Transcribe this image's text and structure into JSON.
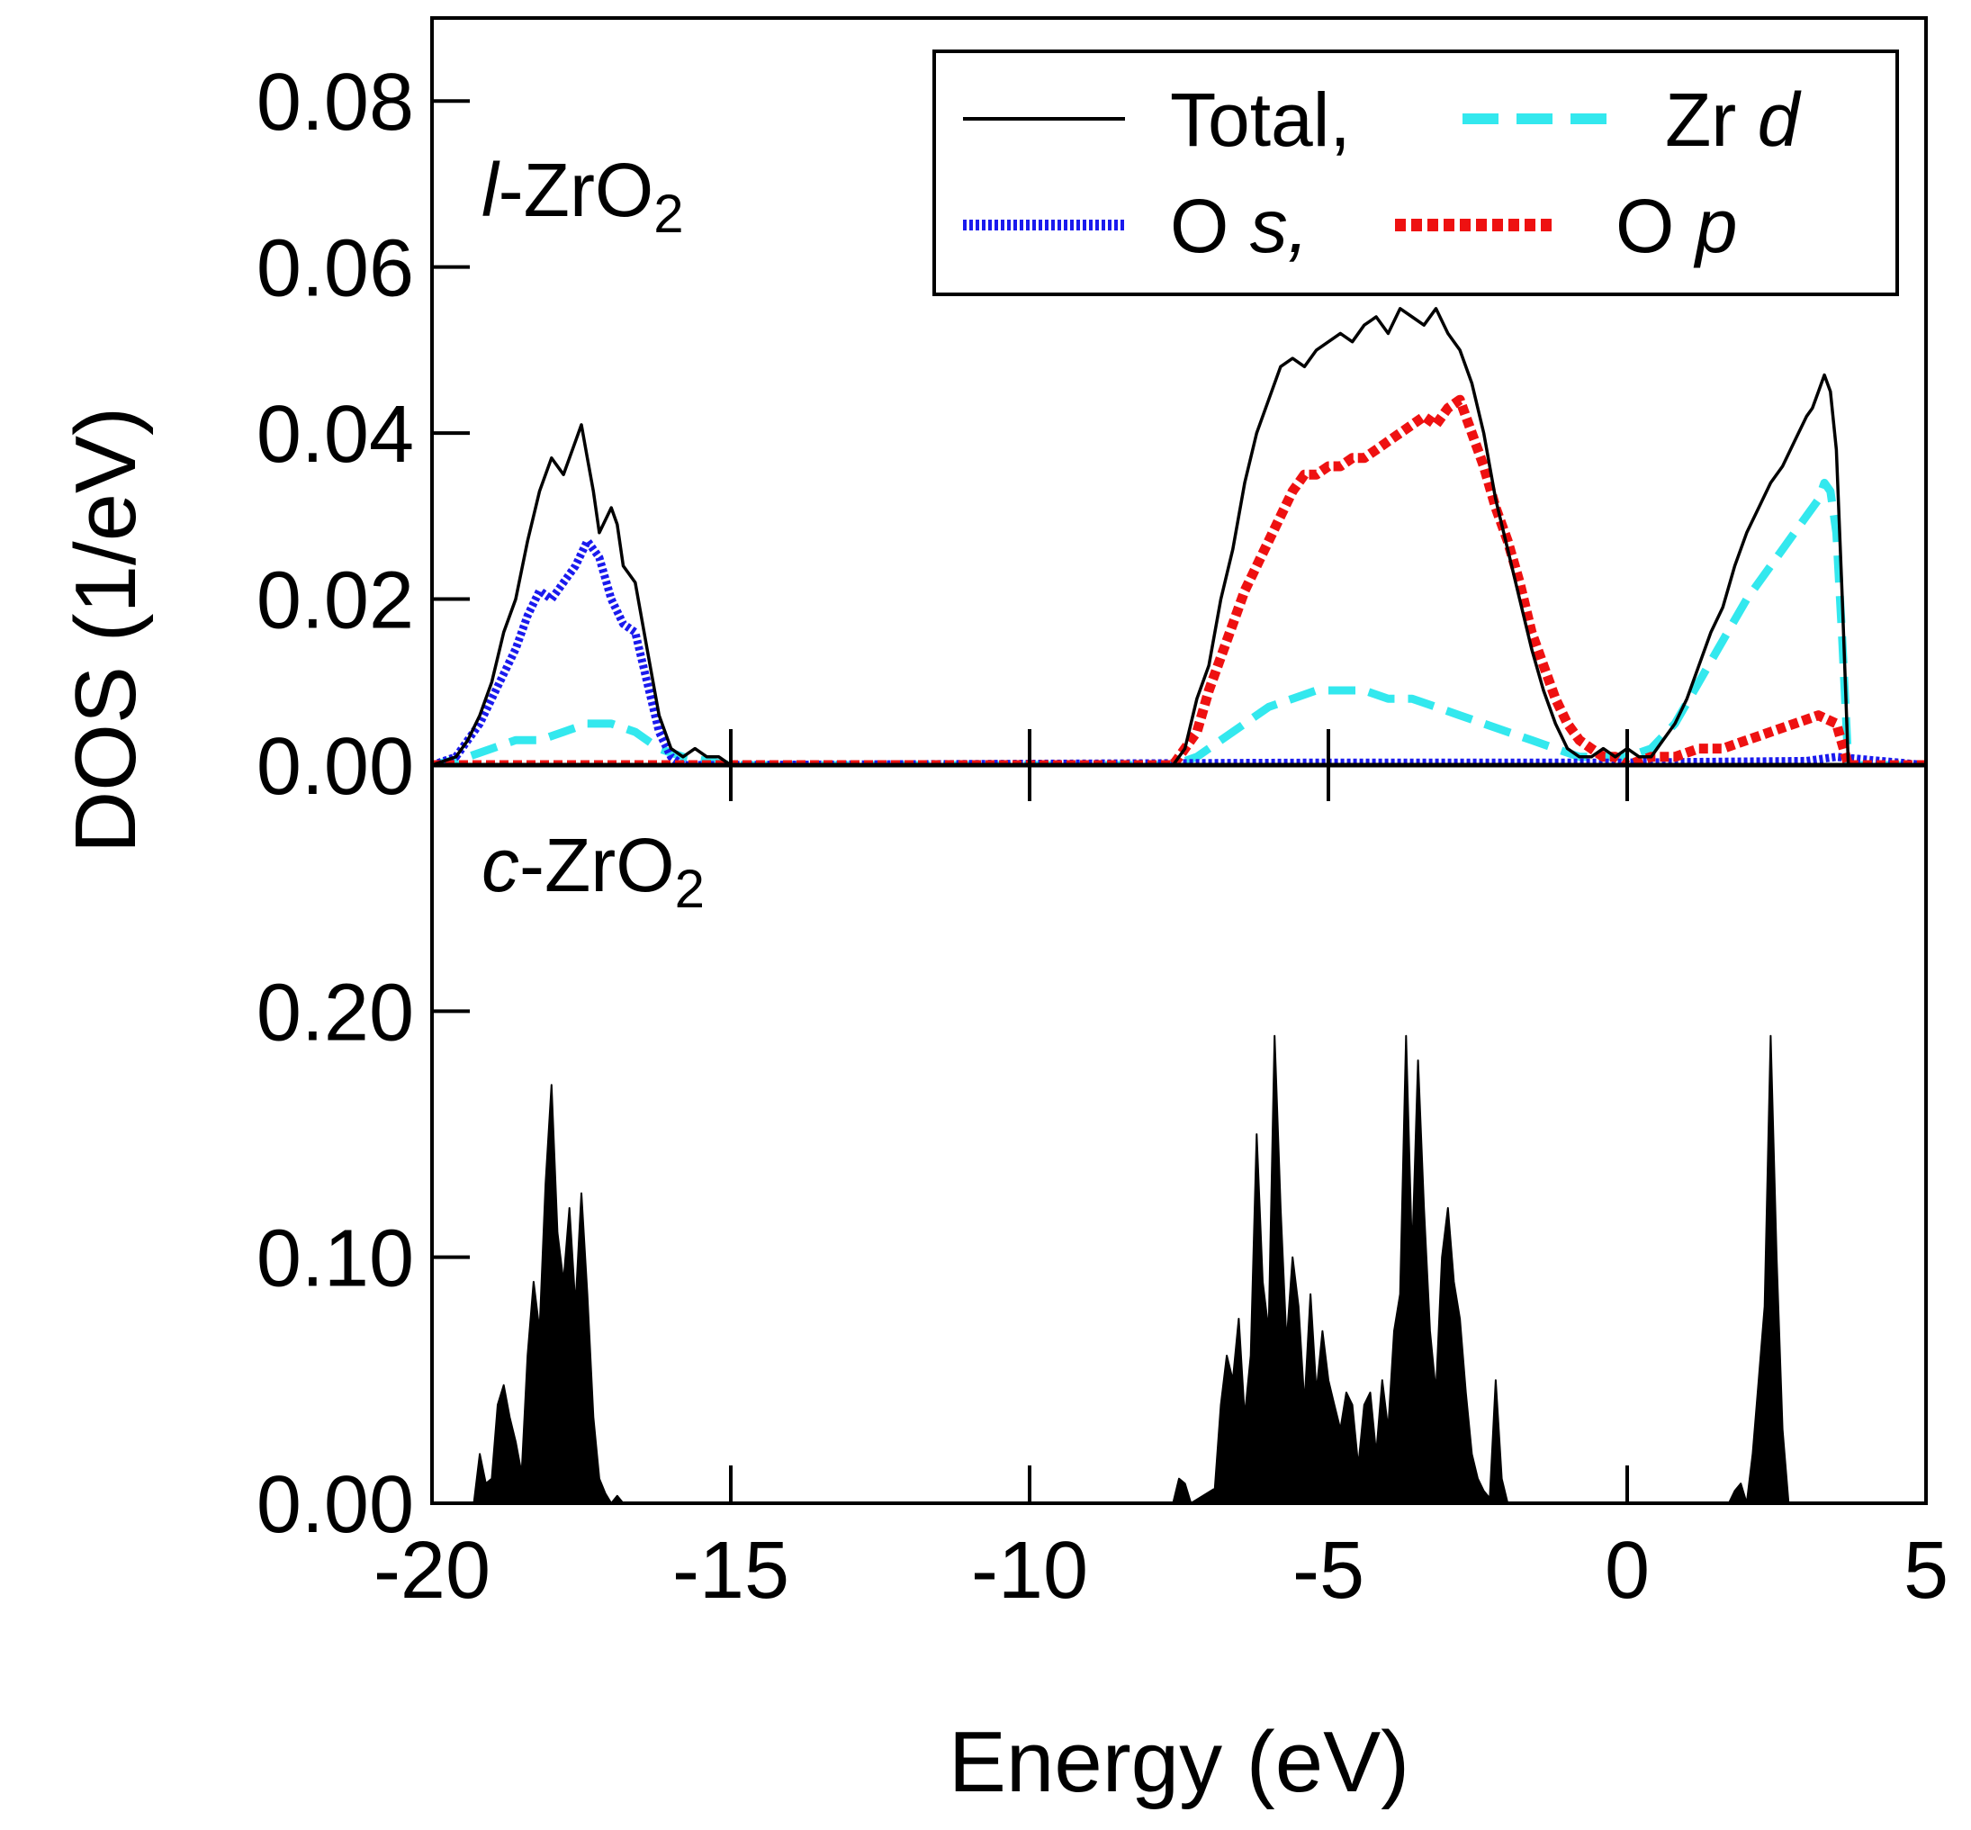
{
  "chart_data": [
    {
      "type": "line",
      "panel_label": {
        "prefix": "l",
        "formula": "-ZrO",
        "subscript": "2"
      },
      "xlim": [
        -20,
        5
      ],
      "ylim": [
        0,
        0.09
      ],
      "xticks": [
        -20,
        -15,
        -10,
        -5,
        0,
        5
      ],
      "yticks": [
        "0.00",
        "0.02",
        "0.04",
        "0.06",
        "0.08"
      ],
      "ytick_values": [
        0,
        0.02,
        0.04,
        0.06,
        0.08
      ],
      "legend": {
        "placement": "top-right",
        "entries": [
          {
            "label": "Total,",
            "suffix": ""
          },
          {
            "label": "Zr ",
            "suffix": "d"
          },
          {
            "label": "O ",
            "suffix": "s,"
          },
          {
            "label": "O ",
            "suffix": "p"
          }
        ]
      },
      "series": [
        {
          "name": "Total",
          "color": "#000000",
          "style": "solid",
          "x": [
            -20,
            -19.6,
            -19.4,
            -19.2,
            -19.0,
            -18.8,
            -18.6,
            -18.4,
            -18.2,
            -18.0,
            -17.8,
            -17.6,
            -17.5,
            -17.4,
            -17.3,
            -17.2,
            -17.0,
            -16.9,
            -16.8,
            -16.6,
            -16.4,
            -16.2,
            -16.0,
            -15.8,
            -15.6,
            -15.4,
            -15.2,
            -15.0,
            -7.6,
            -7.4,
            -7.2,
            -7.0,
            -6.8,
            -6.6,
            -6.4,
            -6.2,
            -6.0,
            -5.8,
            -5.6,
            -5.4,
            -5.2,
            -5.0,
            -4.8,
            -4.6,
            -4.4,
            -4.2,
            -4.0,
            -3.8,
            -3.6,
            -3.4,
            -3.2,
            -3.0,
            -2.8,
            -2.6,
            -2.4,
            -2.2,
            -2.0,
            -1.8,
            -1.6,
            -1.4,
            -1.2,
            -1.0,
            -0.8,
            -0.6,
            -0.4,
            -0.2,
            0.0,
            0.2,
            0.4,
            0.6,
            0.8,
            1.0,
            1.2,
            1.4,
            1.6,
            1.8,
            2.0,
            2.2,
            2.4,
            2.6,
            2.8,
            3.0,
            3.1,
            3.2,
            3.3,
            3.4,
            3.5,
            3.6,
            3.7,
            5.0
          ],
          "y": [
            0,
            0.001,
            0.003,
            0.006,
            0.01,
            0.016,
            0.02,
            0.027,
            0.033,
            0.037,
            0.035,
            0.039,
            0.041,
            0.037,
            0.033,
            0.028,
            0.031,
            0.029,
            0.024,
            0.022,
            0.014,
            0.006,
            0.002,
            0.001,
            0.002,
            0.001,
            0.001,
            0,
            0,
            0.002,
            0.008,
            0.012,
            0.02,
            0.026,
            0.034,
            0.04,
            0.044,
            0.048,
            0.049,
            0.048,
            0.05,
            0.051,
            0.052,
            0.051,
            0.053,
            0.054,
            0.052,
            0.055,
            0.054,
            0.053,
            0.055,
            0.052,
            0.05,
            0.046,
            0.04,
            0.032,
            0.026,
            0.02,
            0.014,
            0.009,
            0.005,
            0.002,
            0.001,
            0.001,
            0.002,
            0.001,
            0.002,
            0.001,
            0.001,
            0.003,
            0.005,
            0.008,
            0.012,
            0.016,
            0.019,
            0.024,
            0.028,
            0.031,
            0.034,
            0.036,
            0.039,
            0.042,
            0.043,
            0.045,
            0.047,
            0.045,
            0.038,
            0.02,
            0,
            0
          ]
        },
        {
          "name": "Zr d",
          "color": "#33e8ee",
          "style": "dashed",
          "x": [
            -20,
            -19.4,
            -19.0,
            -18.6,
            -18.2,
            -17.8,
            -17.4,
            -17.0,
            -16.6,
            -16.2,
            -15.8,
            -15.0,
            -7.6,
            -7.2,
            -6.8,
            -6.4,
            -6.0,
            -5.6,
            -5.2,
            -4.8,
            -4.4,
            -4.0,
            -3.6,
            -3.2,
            -2.8,
            -2.4,
            -2.0,
            -1.6,
            -1.2,
            -0.8,
            -0.4,
            0.0,
            0.4,
            0.8,
            1.2,
            1.6,
            2.0,
            2.4,
            2.8,
            3.0,
            3.2,
            3.3,
            3.4,
            3.5,
            3.6,
            3.7,
            5.0
          ],
          "y": [
            0,
            0.001,
            0.002,
            0.003,
            0.003,
            0.004,
            0.005,
            0.005,
            0.004,
            0.002,
            0.001,
            0,
            0,
            0.001,
            0.003,
            0.005,
            0.007,
            0.008,
            0.009,
            0.009,
            0.009,
            0.008,
            0.008,
            0.007,
            0.006,
            0.005,
            0.004,
            0.003,
            0.002,
            0.001,
            0.001,
            0.001,
            0.002,
            0.005,
            0.01,
            0.015,
            0.02,
            0.024,
            0.028,
            0.03,
            0.032,
            0.034,
            0.033,
            0.028,
            0.015,
            0,
            0
          ]
        },
        {
          "name": "O s",
          "color": "#1a1aee",
          "style": "dotted",
          "x": [
            -20,
            -19.6,
            -19.4,
            -19.2,
            -19.0,
            -18.8,
            -18.6,
            -18.4,
            -18.2,
            -18.0,
            -17.8,
            -17.6,
            -17.4,
            -17.2,
            -17.0,
            -16.8,
            -16.6,
            -16.4,
            -16.2,
            -16.0,
            -15.8,
            -5.0,
            0.0,
            3.0,
            3.5,
            5.0
          ],
          "y": [
            0,
            0.001,
            0.003,
            0.005,
            0.008,
            0.011,
            0.014,
            0.018,
            0.021,
            0.02,
            0.022,
            0.024,
            0.027,
            0.025,
            0.02,
            0.017,
            0.016,
            0.01,
            0.004,
            0.001,
            0,
            0.0003,
            0.0003,
            0.0005,
            0.001,
            0
          ]
        },
        {
          "name": "O p",
          "color": "#ee1111",
          "style": "dotted-heavy",
          "x": [
            -20,
            -15.0,
            -7.6,
            -7.2,
            -7.0,
            -6.8,
            -6.6,
            -6.4,
            -6.2,
            -6.0,
            -5.8,
            -5.6,
            -5.4,
            -5.2,
            -5.0,
            -4.8,
            -4.6,
            -4.4,
            -4.2,
            -4.0,
            -3.8,
            -3.6,
            -3.4,
            -3.2,
            -3.0,
            -2.8,
            -2.6,
            -2.4,
            -2.2,
            -2.0,
            -1.8,
            -1.6,
            -1.4,
            -1.2,
            -1.0,
            -0.8,
            -0.6,
            -0.4,
            -0.2,
            0.0,
            0.4,
            0.8,
            1.2,
            1.6,
            2.0,
            2.4,
            2.8,
            3.2,
            3.5,
            3.7,
            5.0
          ],
          "y": [
            0,
            0,
            0,
            0.004,
            0.009,
            0.013,
            0.017,
            0.021,
            0.024,
            0.027,
            0.03,
            0.033,
            0.035,
            0.035,
            0.036,
            0.036,
            0.037,
            0.037,
            0.038,
            0.039,
            0.04,
            0.041,
            0.042,
            0.041,
            0.043,
            0.044,
            0.04,
            0.036,
            0.031,
            0.027,
            0.022,
            0.016,
            0.012,
            0.008,
            0.005,
            0.003,
            0.002,
            0.001,
            0.001,
            0,
            0.001,
            0.001,
            0.002,
            0.002,
            0.003,
            0.004,
            0.005,
            0.006,
            0.005,
            0,
            0
          ]
        }
      ]
    },
    {
      "type": "area",
      "panel_label": {
        "prefix": "c",
        "formula": "-ZrO",
        "subscript": "2"
      },
      "xlim": [
        -20,
        5
      ],
      "ylim": [
        0,
        0.3
      ],
      "xticks": [
        -20,
        -15,
        -10,
        -5,
        0,
        5
      ],
      "yticks": [
        "0.00",
        "0.10",
        "0.20"
      ],
      "ytick_values": [
        0,
        0.1,
        0.2
      ],
      "series": [
        {
          "name": "Total",
          "color": "#000000",
          "x": [
            -20,
            -19.3,
            -19.2,
            -19.1,
            -19.0,
            -18.9,
            -18.8,
            -18.7,
            -18.6,
            -18.5,
            -18.4,
            -18.3,
            -18.2,
            -18.1,
            -18.0,
            -17.9,
            -17.8,
            -17.7,
            -17.6,
            -17.5,
            -17.4,
            -17.3,
            -17.2,
            -17.1,
            -17.0,
            -16.9,
            -16.8,
            -16.7,
            -16.6,
            -16.5,
            -16.4,
            -7.6,
            -7.5,
            -7.4,
            -7.3,
            -6.9,
            -6.8,
            -6.7,
            -6.6,
            -6.5,
            -6.4,
            -6.3,
            -6.2,
            -6.1,
            -6.0,
            -5.9,
            -5.8,
            -5.7,
            -5.6,
            -5.5,
            -5.4,
            -5.3,
            -5.2,
            -5.1,
            -5.0,
            -4.9,
            -4.8,
            -4.7,
            -4.6,
            -4.5,
            -4.4,
            -4.3,
            -4.2,
            -4.1,
            -4.0,
            -3.9,
            -3.8,
            -3.7,
            -3.6,
            -3.5,
            -3.4,
            -3.3,
            -3.2,
            -3.1,
            -3.0,
            -2.9,
            -2.8,
            -2.7,
            -2.6,
            -2.5,
            -2.4,
            -2.3,
            -2.2,
            -2.1,
            -2.0,
            -1.9,
            -1.8,
            -1.7,
            -1.6,
            -1.5,
            -1.4,
            1.7,
            1.8,
            1.9,
            2.0,
            2.1,
            2.2,
            2.3,
            2.4,
            2.5,
            2.6,
            2.7,
            2.8,
            2.9,
            3.0,
            3.5,
            5.0
          ],
          "y": [
            0,
            0,
            0.02,
            0.008,
            0.01,
            0.04,
            0.048,
            0.035,
            0.025,
            0.012,
            0.06,
            0.09,
            0.07,
            0.13,
            0.17,
            0.11,
            0.09,
            0.12,
            0.08,
            0.126,
            0.085,
            0.035,
            0.01,
            0.004,
            0,
            0.003,
            0,
            0,
            0,
            0,
            0,
            0,
            0.01,
            0.008,
            0,
            0.006,
            0.04,
            0.06,
            0.05,
            0.075,
            0.035,
            0.06,
            0.15,
            0.09,
            0.07,
            0.19,
            0.12,
            0.065,
            0.1,
            0.08,
            0.04,
            0.085,
            0.045,
            0.07,
            0.05,
            0.04,
            0.03,
            0.045,
            0.04,
            0.015,
            0.04,
            0.045,
            0.02,
            0.05,
            0.03,
            0.07,
            0.085,
            0.19,
            0.1,
            0.18,
            0.12,
            0.07,
            0.045,
            0.1,
            0.12,
            0.09,
            0.075,
            0.045,
            0.02,
            0.01,
            0.005,
            0.002,
            0.05,
            0.01,
            0,
            0,
            0,
            0,
            0,
            0,
            0,
            0,
            0.005,
            0.008,
            0,
            0.02,
            0.05,
            0.08,
            0.19,
            0.1,
            0.03,
            0,
            0,
            0,
            0,
            0,
            0
          ]
        }
      ]
    }
  ],
  "axes": {
    "xlabel": "Energy (eV)",
    "ylabel": "DOS (1/eV)"
  }
}
